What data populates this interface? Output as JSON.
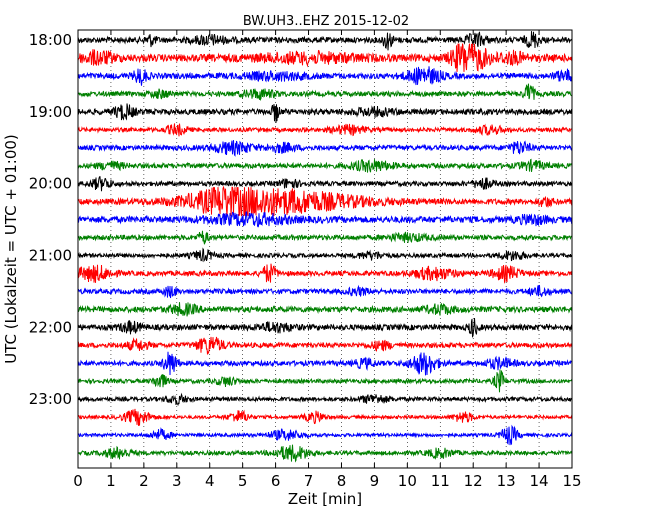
{
  "chart_data": {
    "type": "line",
    "title": "BW.UH3..EHZ 2015-12-02",
    "xlabel": "Zeit  [min]",
    "ylabel": "UTC (Lokalzeit = UTC + 01:00)",
    "xlim": [
      0,
      15
    ],
    "x_ticks": [
      "0",
      "1",
      "2",
      "3",
      "4",
      "5",
      "6",
      "7",
      "8",
      "9",
      "10",
      "11",
      "12",
      "13",
      "14",
      "15"
    ],
    "y_ticks": [
      "18:00",
      "19:00",
      "20:00",
      "21:00",
      "22:00",
      "23:00"
    ],
    "grid": "vertical dotted",
    "trace_colors": [
      "#000000",
      "#ff0000",
      "#0000ff",
      "#008000"
    ],
    "traces": [
      {
        "start": "18:00",
        "color": "#000000",
        "noise": 0.35,
        "events": [
          [
            2.2,
            0.15,
            0.6
          ],
          [
            9.4,
            0.15,
            1.0
          ],
          [
            12.1,
            0.3,
            0.7
          ],
          [
            13.8,
            0.2,
            0.9
          ],
          [
            4.0,
            0.5,
            0.5
          ]
        ]
      },
      {
        "start": "18:15",
        "color": "#ff0000",
        "noise": 0.45,
        "events": [
          [
            0.6,
            0.5,
            0.7
          ],
          [
            7.0,
            1.5,
            0.5
          ],
          [
            12.0,
            0.5,
            1.4
          ],
          [
            11.6,
            0.3,
            0.9
          ],
          [
            13.2,
            0.4,
            0.6
          ]
        ]
      },
      {
        "start": "18:30",
        "color": "#0000ff",
        "noise": 0.35,
        "events": [
          [
            1.9,
            0.2,
            0.9
          ],
          [
            10.5,
            0.5,
            1.0
          ],
          [
            14.8,
            0.3,
            0.6
          ],
          [
            6.0,
            1.0,
            0.4
          ]
        ]
      },
      {
        "start": "18:45",
        "color": "#008000",
        "noise": 0.3,
        "events": [
          [
            13.7,
            0.15,
            1.2
          ],
          [
            5.5,
            0.5,
            0.5
          ],
          [
            2.5,
            0.3,
            0.4
          ]
        ]
      },
      {
        "start": "19:00",
        "color": "#000000",
        "noise": 0.35,
        "events": [
          [
            1.4,
            0.3,
            0.8
          ],
          [
            6.0,
            0.1,
            1.2
          ],
          [
            9.0,
            0.6,
            0.4
          ]
        ]
      },
      {
        "start": "19:15",
        "color": "#ff0000",
        "noise": 0.25,
        "events": [
          [
            3.0,
            0.3,
            0.6
          ],
          [
            8.2,
            0.5,
            0.5
          ],
          [
            12.5,
            0.4,
            0.5
          ]
        ]
      },
      {
        "start": "19:30",
        "color": "#0000ff",
        "noise": 0.3,
        "events": [
          [
            4.7,
            0.6,
            0.7
          ],
          [
            6.2,
            0.4,
            0.5
          ],
          [
            13.4,
            0.3,
            0.7
          ]
        ]
      },
      {
        "start": "19:45",
        "color": "#008000",
        "noise": 0.3,
        "events": [
          [
            8.9,
            0.6,
            0.6
          ],
          [
            13.8,
            0.4,
            0.5
          ],
          [
            1.0,
            0.4,
            0.4
          ]
        ]
      },
      {
        "start": "20:00",
        "color": "#000000",
        "noise": 0.28,
        "events": [
          [
            0.7,
            0.3,
            0.7
          ],
          [
            6.4,
            0.3,
            0.5
          ],
          [
            12.3,
            0.3,
            0.6
          ]
        ]
      },
      {
        "start": "20:15",
        "color": "#ff0000",
        "noise": 0.35,
        "events": [
          [
            6.0,
            2.4,
            1.4
          ],
          [
            4.5,
            1.0,
            0.9
          ],
          [
            14.2,
            0.2,
            0.5
          ]
        ]
      },
      {
        "start": "20:30",
        "color": "#0000ff",
        "noise": 0.4,
        "events": [
          [
            5.2,
            1.2,
            0.6
          ],
          [
            13.8,
            0.4,
            0.5
          ]
        ]
      },
      {
        "start": "20:45",
        "color": "#008000",
        "noise": 0.3,
        "events": [
          [
            3.8,
            0.15,
            0.7
          ],
          [
            10.0,
            0.6,
            0.4
          ]
        ]
      },
      {
        "start": "21:00",
        "color": "#000000",
        "noise": 0.25,
        "events": [
          [
            3.8,
            0.3,
            0.6
          ],
          [
            8.9,
            0.4,
            0.4
          ],
          [
            13.2,
            0.4,
            0.5
          ]
        ]
      },
      {
        "start": "21:15",
        "color": "#ff0000",
        "noise": 0.3,
        "events": [
          [
            0.5,
            0.5,
            0.9
          ],
          [
            5.8,
            0.2,
            1.1
          ],
          [
            10.8,
            0.6,
            0.7
          ],
          [
            13.0,
            0.4,
            0.8
          ]
        ]
      },
      {
        "start": "21:30",
        "color": "#0000ff",
        "noise": 0.3,
        "events": [
          [
            2.8,
            0.2,
            0.6
          ],
          [
            8.5,
            0.3,
            0.4
          ],
          [
            14.0,
            0.3,
            0.5
          ]
        ]
      },
      {
        "start": "21:45",
        "color": "#008000",
        "noise": 0.35,
        "events": [
          [
            3.2,
            0.4,
            0.6
          ],
          [
            11.0,
            0.4,
            0.5
          ]
        ]
      },
      {
        "start": "22:00",
        "color": "#000000",
        "noise": 0.35,
        "events": [
          [
            1.6,
            0.3,
            0.6
          ],
          [
            6.0,
            0.5,
            0.5
          ],
          [
            12.0,
            0.12,
            1.1
          ]
        ]
      },
      {
        "start": "22:15",
        "color": "#ff0000",
        "noise": 0.3,
        "events": [
          [
            4.0,
            0.4,
            1.0
          ],
          [
            1.8,
            0.3,
            0.6
          ],
          [
            9.2,
            0.3,
            0.5
          ]
        ]
      },
      {
        "start": "22:30",
        "color": "#0000ff",
        "noise": 0.3,
        "events": [
          [
            2.8,
            0.2,
            1.4
          ],
          [
            10.5,
            0.4,
            1.3
          ],
          [
            12.8,
            0.4,
            0.6
          ],
          [
            8.7,
            0.3,
            0.5
          ]
        ]
      },
      {
        "start": "22:45",
        "color": "#008000",
        "noise": 0.25,
        "events": [
          [
            2.5,
            0.2,
            0.8
          ],
          [
            12.8,
            0.15,
            1.3
          ],
          [
            4.5,
            0.3,
            0.5
          ]
        ]
      },
      {
        "start": "23:00",
        "color": "#000000",
        "noise": 0.25,
        "events": [
          [
            3.0,
            0.3,
            0.5
          ],
          [
            9.0,
            0.4,
            0.5
          ]
        ]
      },
      {
        "start": "23:15",
        "color": "#ff0000",
        "noise": 0.2,
        "events": [
          [
            1.8,
            0.4,
            0.9
          ],
          [
            4.9,
            0.3,
            0.7
          ],
          [
            7.2,
            0.3,
            0.6
          ],
          [
            11.7,
            0.3,
            0.6
          ]
        ]
      },
      {
        "start": "23:30",
        "color": "#0000ff",
        "noise": 0.2,
        "events": [
          [
            2.5,
            0.3,
            0.6
          ],
          [
            6.3,
            0.5,
            0.6
          ],
          [
            13.1,
            0.25,
            1.1
          ]
        ]
      },
      {
        "start": "23:45",
        "color": "#008000",
        "noise": 0.25,
        "events": [
          [
            1.2,
            0.4,
            0.6
          ],
          [
            6.5,
            0.5,
            0.9
          ],
          [
            11.0,
            0.4,
            0.5
          ]
        ]
      }
    ]
  }
}
